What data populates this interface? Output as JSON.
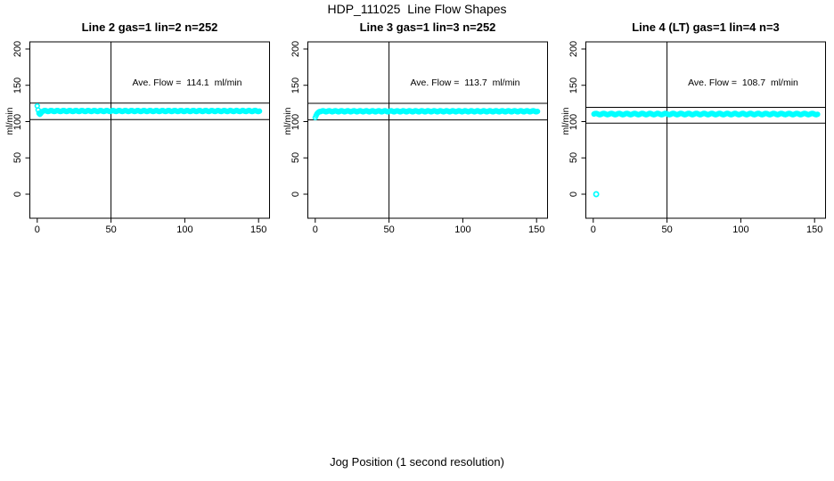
{
  "header": {
    "title": "HDP_111025  Line Flow Shapes"
  },
  "colors": {
    "point": "#00ffff",
    "line": "#000000",
    "background": "#ffffff",
    "text": "#000000"
  },
  "chart_data": {
    "type": "scatter",
    "title": "HDP_111025  Line Flow Shapes",
    "xlabel": "Jog Position (1 second resolution)",
    "ylabel": "ml/min",
    "xlim": [
      -6,
      156
    ],
    "ylim": [
      -33,
      210
    ],
    "xticks": [
      0,
      50,
      100,
      150
    ],
    "yticks": [
      0,
      50,
      100,
      150,
      200
    ],
    "grid": false,
    "vline_x": 50,
    "point_style": "open-circle",
    "panels": [
      {
        "title": "Line 2 gas=1 lin=2 n=252",
        "annotation": "Ave. Flow =  114.1  ml/min",
        "ave_flow": 114.1,
        "n": 252,
        "hline_upper": 125.5,
        "hline_lower": 102.7,
        "band": {
          "x_start": 0,
          "x_end": 150.6,
          "step": 0.6,
          "y_flat": 114.6,
          "y_head": [
            121.5,
            116.0,
            111.5,
            110.0,
            111.3,
            113.0
          ],
          "wiggle": 0.7
        },
        "outliers": []
      },
      {
        "title": "Line 3 gas=1 lin=3 n=252",
        "annotation": "Ave. Flow =  113.7  ml/min",
        "ave_flow": 113.7,
        "n": 252,
        "hline_upper": 125.1,
        "hline_lower": 102.3,
        "band": {
          "x_start": 0,
          "x_end": 150.6,
          "step": 0.6,
          "y_flat": 114.2,
          "y_head": [
            105.5,
            108.5,
            110.8,
            112.2,
            113.2,
            113.8
          ],
          "wiggle": 0.7
        },
        "outliers": []
      },
      {
        "title": "Line 4 (LT) gas=1 lin=4 n=3",
        "annotation": "Ave. Flow =  108.7  ml/min",
        "ave_flow": 108.7,
        "n": 3,
        "hline_upper": 119.6,
        "hline_lower": 97.8,
        "band": {
          "x_start": 0.5,
          "x_end": 152.0,
          "step": 0.75,
          "y_flat": 110.4,
          "y_head": [],
          "wiggle": 0.9
        },
        "outliers": [
          {
            "x": 2,
            "y": 0
          }
        ]
      }
    ]
  }
}
